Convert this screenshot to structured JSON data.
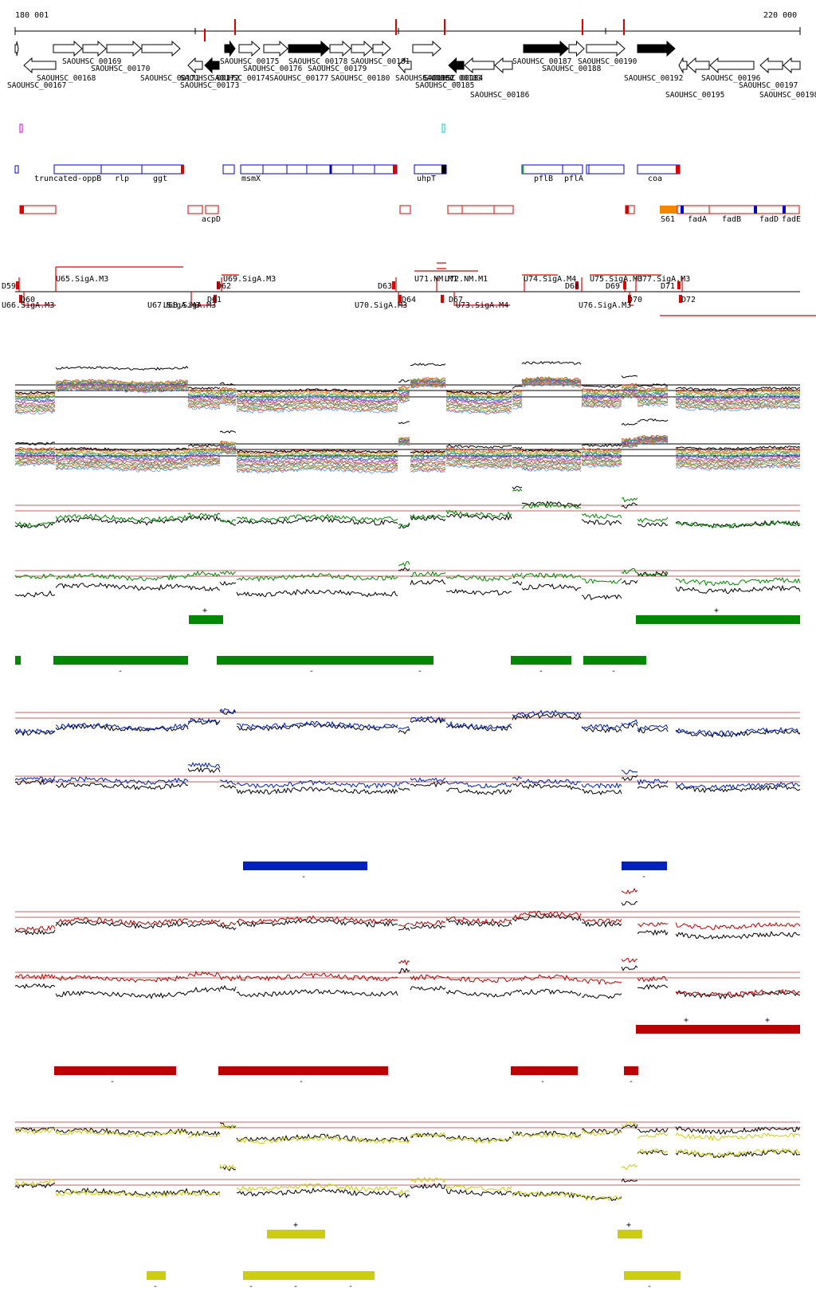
{
  "coords": {
    "start": "180 001",
    "end": "220 000"
  },
  "genes": {
    "row_a": [
      "SAOUHSC_00169",
      "SAOUHSC_00175",
      "SAOUHSC_00178",
      "SAOUHSC_00181",
      "SAOUHSC_00187",
      "SAOUHSC_00190"
    ],
    "row_b": [
      "SAOUHSC_00170",
      "SAOUHSC_00176",
      "SAOUHSC_00179",
      "SAOUHSC_00188"
    ],
    "row_c": [
      "SAOUHSC_00168",
      "SAOUHSC_00171",
      "SAOUHSC_00172",
      "SAOUHSC_00174",
      "SAOUHSC_00177",
      "SAOUHSC_00180",
      "SAOUHSC_00182",
      "SAOUHSC_00183",
      "SAOUHSC_00184",
      "SAOUHSC_00192",
      "SAOUHSC_00196"
    ],
    "row_d": [
      "SAOUHSC_00167",
      "SAOUHSC_00173",
      "SAOUHSC_00185",
      "SAOUHSC_00197"
    ],
    "row_e": [
      "SAOUHSC_00186",
      "SAOUHSC_00195",
      "SAOUHSC_00198"
    ]
  },
  "gene_names": [
    "truncated-oppB",
    "rlp",
    "ggt",
    "msmX",
    "uhpT",
    "pflB",
    "pflA",
    "coa",
    "acpD",
    "S61",
    "fadA",
    "fadB",
    "fadD",
    "fadE"
  ],
  "promoters_upper": [
    "U65.SigA.M3",
    "U69.SigA.M3",
    "U71.NM.M1",
    "U72.NM.M1",
    "U74.SigA.M4",
    "U75.SigA.M3",
    "U77.SigA.M3"
  ],
  "promoters_lower": [
    "U66.SigA.M3",
    "U67.SigA.M3",
    "U68.SigA.M3",
    "U70.SigA.M3",
    "U73.SigA.M4",
    "U76.SigA.M3"
  ],
  "down_upper": [
    "D59",
    "D62",
    "D63",
    "D68",
    "D69",
    "D71"
  ],
  "down_lower": [
    "D60",
    "D61",
    "D64",
    "D67",
    "D70",
    "D72"
  ],
  "signs": {
    "plus": "+",
    "minus": "-"
  },
  "colors": {
    "forward_arrow": "#ffffff",
    "highlight_arrow": "#000000",
    "feature_blue": "#0000cc",
    "feature_red": "#dd0000",
    "orange": "#ee8800",
    "green": "#008800",
    "blue_trace": "#0022bb",
    "red_trace": "#bb0000",
    "yellow_trace": "#cccc11"
  }
}
